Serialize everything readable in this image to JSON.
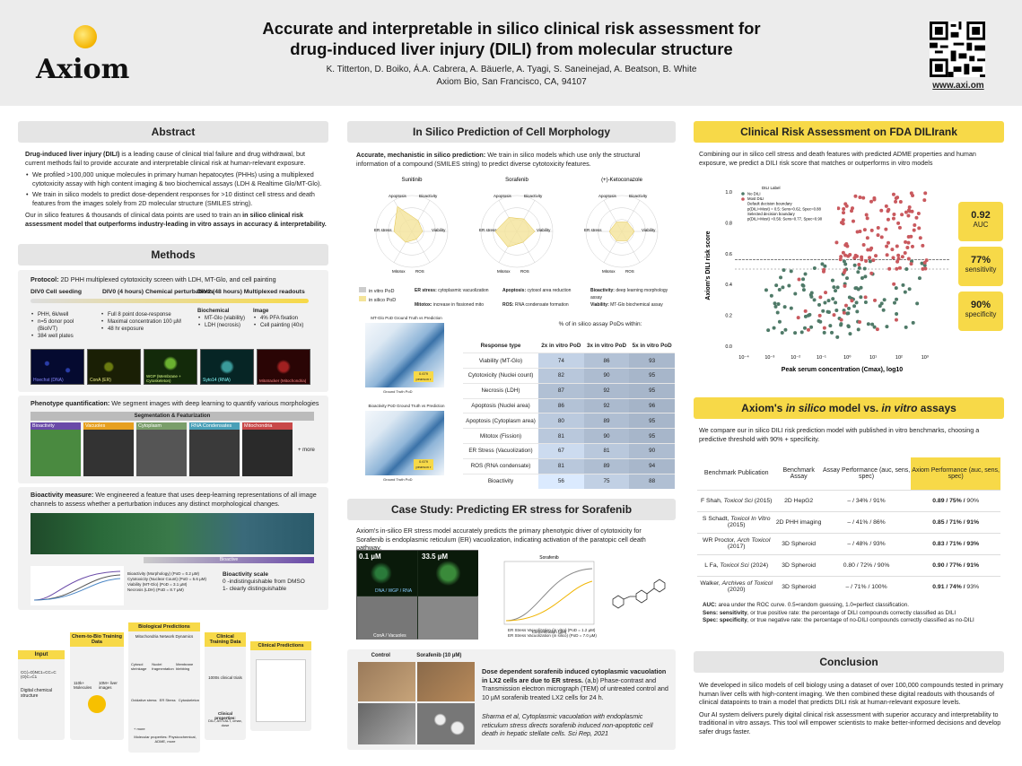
{
  "header": {
    "title_line1": "Accurate and interpretable in silico clinical risk assessment for",
    "title_line2": "drug-induced liver injury (DILI) from molecular structure",
    "authors": "K. Titterton, D. Boiko, Á.A. Cabrera, A. Bäuerle, A. Tyagi, S. Saneinejad, A. Beatson, B. White",
    "affiliation": "Axiom Bio, San Francisco, CA, 94107",
    "logo": "Axiom",
    "url": "www.axi.om"
  },
  "abstract": {
    "heading": "Abstract",
    "p1_bold": "Drug-induced liver injury (DILI)",
    "p1": " is a leading cause of clinical trial failure and drug withdrawal, but current methods fail to provide accurate and interpretable clinical risk at human-relevant exposure.",
    "b1": "We profiled >100,000 unique molecules in primary human hepatocytes (PHHs) using a multiplexed cytotoxicity assay with high content imaging & two biochemical assays (LDH & Realtime Glo/MT-Glo).",
    "b2": "We train in silico models to predict dose-dependent responses for >10 distinct cell stress and death features from the images solely from 2D molecular structure (SMILES string).",
    "p2": "Our in silico features & thousands of clinical data points are used to train an ",
    "p2_bold": "in silico clinical risk assessment model that outperforms industry-leading in vitro assays in accuracy & interpretability."
  },
  "methods": {
    "heading": "Methods",
    "protocol_bold": "Protocol:",
    "protocol": " 2D PHH multiplexed cytotoxicity screen with LDH, MT-Glo, and cell painting",
    "div0": "DIV0 Cell seeding",
    "div0_4": "DIV0 (4 hours) Chemical perturbations",
    "div2": "DIV2 (48 hours) Multiplexed readouts",
    "col1": [
      "PHH, 6k/well",
      "n=5 donor pool (BioIVT)",
      "384 well plates"
    ],
    "col2": [
      "Full 8 point dose-response",
      "Maximal concentration 100 µM",
      "48 hr exposure"
    ],
    "biochem_h": "Biochemical",
    "biochem": [
      "MT-Glo (viability)",
      "LDH (necrosis)"
    ],
    "image_h": "Image",
    "image": [
      "4% PFA fixation",
      "Cell painting (40x)"
    ],
    "stains": [
      "Hoechst (DNA)",
      "ConA (ER)",
      "WGP (Membrane + Cytoskeleton)",
      "Syto14 (RNA)",
      "Mitotracker (Mitochondria)"
    ],
    "pheno_bold": "Phenotype quantification:",
    "pheno": " We segment images with deep learning to quantify various morphologies",
    "seg_banner": "Segmentation & Featurization",
    "seg_tiles": [
      "Bioactivity",
      "Vacuoles",
      "Cytoplasm",
      "RNA Condensates",
      "Mitochondria"
    ],
    "seg_more": "+ more",
    "bio_bold": "Bioactivity measure:",
    "bio": " We engineered a feature that uses deep-learning representations of all image channels to assess whether a perturbation induces any distinct morphological changes.",
    "bio_legend": [
      "Bioactivity (Morphology) (PoD = 0.2 µM)",
      "Cytotoxicity (Nuclear Count) (PoD = 5.6 µM)",
      "Viability (MT-Glo) (PoD = 3.1 µM)",
      "Necrosis (LDH) (PoD = 8.7 µM)"
    ],
    "bio_scale_h": "Bioactivity scale",
    "bio_scale": [
      "0 -indistinguishable from DMSO",
      "1- clearly distinguishable"
    ],
    "bio_bar": "Bioactive",
    "flow": {
      "input": "Input",
      "input_smiles": "CC(=O)NC1=CC=C(O)C=C1",
      "input_desc": "Digital chemical structure",
      "c2b": "Chem-to-Bio Training Data",
      "c2b_a": "110k+ Molecules",
      "c2b_b": "10M+ liver images",
      "bio_pred": "Biological Predictions",
      "mito": "Mitochondria Network Dynamics",
      "mito_items": [
        "Cytosol shrinkage",
        "Nuclei fragmentation",
        "Membrane blebbing"
      ],
      "er_items": [
        "Oxidative stress",
        "ER Stress",
        "Cytoskeleton"
      ],
      "more": "+ more",
      "mol_props": "Molecular properties: Physicochemical, ADME, more",
      "clin_train": "Clinical Training Data",
      "clin_trials": "1000s clinical trials",
      "clin_props": "Clinical properties:",
      "clin_props_v": "DILI, AST/ALT, cmax, dose",
      "clin_pred": "Clinical Predictions"
    }
  },
  "morph": {
    "heading": "In Silico Prediction of Cell Morphology",
    "intro_bold": "Accurate, mechanistic in silico prediction:",
    "intro": " We train in silico models which use only the structural information of a compound (SMILES string) to predict diverse cytotoxicity features.",
    "radars": [
      "Sunitinib",
      "Sorafenib",
      "(+)-Ketoconazole"
    ],
    "axes": [
      "Bioactivity",
      "Viability",
      "ROS",
      "Mitotox",
      "ER stress",
      "Apoptosis"
    ],
    "legend": [
      "in vitro PoD",
      "in silico PoD"
    ],
    "defs": [
      {
        "k": "ER stress:",
        "v": " cytoplasmic vacuolization"
      },
      {
        "k": "Apoptosis:",
        "v": " cytosol area reduction"
      },
      {
        "k": "Bioactivity:",
        "v": " deep learning morphology assay"
      },
      {
        "k": "Mitotox:",
        "v": " increase in fissioned mito"
      },
      {
        "k": "ROS:",
        "v": " RNA condensate formation"
      },
      {
        "k": "Viability:",
        "v": " MT-Glo biochemical assay"
      }
    ],
    "plot1_title": "MT-Glo PoD Ground Truth vs Prediction",
    "plot2_title": "Bioactivity PoD Ground Truth vs Prediction",
    "r_box": "0.679",
    "r_label": "pearson r",
    "xlab": "Ground Truth PoD",
    "ylab": "Predicted PoD",
    "table_caption": "% of in silico assay PoDs within:",
    "th": [
      "Response type",
      "2x in vitro PoD",
      "3x in vitro PoD",
      "5x in vitro PoD"
    ],
    "rows": [
      [
        "Viability (MT-Glo)",
        "74",
        "86",
        "93"
      ],
      [
        "Cytotoxicity (Nuclei count)",
        "82",
        "90",
        "95"
      ],
      [
        "Necrosis (LDH)",
        "87",
        "92",
        "95"
      ],
      [
        "Apoptosis (Nuclei area)",
        "86",
        "92",
        "96"
      ],
      [
        "Apoptosis (Cytoplasm area)",
        "80",
        "89",
        "95"
      ],
      [
        "Mitotox (Fission)",
        "81",
        "90",
        "95"
      ],
      [
        "ER Stress (Vacuolization)",
        "67",
        "81",
        "90"
      ],
      [
        "ROS (RNA condensate)",
        "81",
        "89",
        "94"
      ],
      [
        "Bioactivity",
        "56",
        "75",
        "88"
      ]
    ]
  },
  "case": {
    "heading": "Case Study: Predicting ER stress for Sorafenib",
    "text": "Axiom's in-silico ER stress model accurately predicts the primary phenotypic driver of cytotoxicity for Sorafenib is endoplasmic reticulum (ER) vacuolization, indicating activation of the paratopic cell death pathway.",
    "conc1": "0.1 µM",
    "conc2": "33.5 µM",
    "chan1": "DNA / WGP / RNA",
    "chan2": "ConA / Vacuoles",
    "plot_title": "Sorafenib",
    "xlab": "Concentration (µM)",
    "ylab": "Normalized Response",
    "legend": [
      "ER Stress Vacuolization (in vitro) (PoD = 1.2 µM)",
      "ER Stress Vacuolization (in silico) (PoD = 7.0 µM)"
    ],
    "control": "Control",
    "soraf": "Sorafenib (10 µM)",
    "tem_bold": "Dose dependent sorafenib induced cytoplasmic vacuolation in LX2 cells are due to ER stress.",
    "tem": " (a,b) Phase-contrast and Transmission electron micrograph (TEM) of untreated control and 10 µM sorafenib treated LX2 cells for 24 h.",
    "cite": "Sharma et al, Cytoplasmic vacuolation with endoplasmic reticulum stress directs sorafenib induced non-apoptotic cell death in hepatic stellate cells. Sci Rep, 2021"
  },
  "risk": {
    "heading": "Clinical Risk Assessment on FDA DILIrank",
    "text": "Combining our in silico cell stress and death features with predicted ADME properties and human exposure, we predict a DILI risk score that matches or outperforms in vitro models",
    "legend_title": "DILI Label",
    "legend": [
      "No DILI",
      "Most DILI",
      "Default decision boundary",
      "p(DILI=Most) = 0.5: Sens=0.62, Spec=0.88",
      "Selected decision boundary",
      "p(DILI=Most) =0.56: Sens=0.77, Spec=0.90"
    ],
    "xlabel": "Peak serum concentration (Cmax), log10",
    "ylabel": "Axiom's DILI risk score",
    "xticks": [
      "10⁻⁴",
      "10⁻³",
      "10⁻²",
      "10⁻¹",
      "10⁰",
      "10¹",
      "10²",
      "10³"
    ],
    "yticks": [
      "0.0",
      "0.2",
      "0.4",
      "0.6",
      "0.8",
      "1.0"
    ],
    "stats": [
      {
        "v": "0.92",
        "l": "AUC"
      },
      {
        "v": "77%",
        "l": "sensitivity"
      },
      {
        "v": "90%",
        "l": "specificity"
      }
    ]
  },
  "compare": {
    "heading_pre": "Axiom's ",
    "heading_em": "in silico",
    "heading_mid": " model vs. ",
    "heading_em2": "in vitro",
    "heading_post": " assays",
    "text": "We compare our in silico DILI risk prediction model with published in vitro benchmarks, choosing a predictive threshold with 90% + specificity.",
    "th": [
      "Benchmark Publication",
      "Benchmark Assay",
      "Assay Performance (auc, sens, spec)",
      "Axiom Performance (auc, sens, spec)"
    ],
    "rows": [
      {
        "pub": "F Shah, ",
        "jr": "Toxicol Sci",
        "yr": " (2015)",
        "assay": "2D HepG2",
        "perf": "– / 34% / 91%",
        "ax": "0.89 / 75% /",
        "ax2": " 90%"
      },
      {
        "pub": "S Schadt, ",
        "jr": "Toxicol In Vitro",
        "yr": " (2015)",
        "assay": "2D PHH imaging",
        "perf": "– / 41% / 86%",
        "ax": "0.85 / 71% / 91%",
        "ax2": ""
      },
      {
        "pub": "WR Proctor, ",
        "jr": "Arch Toxicol",
        "yr": " (2017)",
        "assay": "3D Spheroid",
        "perf": "– / 48% / 93%",
        "ax": "0.83 / 71% / 93%",
        "ax2": ""
      },
      {
        "pub": "L Fa, ",
        "jr": "Toxicol Sci",
        "yr": " (2024)",
        "assay": "3D Spheroid",
        "perf": "0.80 / 72% / 90%",
        "ax": "0.90 / 77% / 91%",
        "ax2": ""
      },
      {
        "pub": "Walker, ",
        "jr": "Archives of Toxicol",
        "yr": " (2020)",
        "assay": "3D Spheroid",
        "perf": "– / 71% / 100%",
        "ax": "0.91 / 74% /",
        "ax2": " 93%"
      }
    ],
    "notes": [
      {
        "k": "AUC:",
        "v": " area under the ROC curve. 0.5=random guessing, 1.0=perfect classification."
      },
      {
        "k": "Sens: sensitivity",
        "v": ", or true positive rate: the percentage of DILI compounds correctly classified as DILI"
      },
      {
        "k": "Spec: specificity",
        "v": ", or true negative rate: the percentage of no-DILI compounds correctly classified as no-DILI"
      }
    ]
  },
  "conclusion": {
    "heading": "Conclusion",
    "p1": "We developed in silico models of cell biology using a dataset of over 100,000 compounds tested in primary human liver cells with high-content imaging. We then combined these digital readouts with thousands of clinical datapoints to train a model that predicts DILI risk at human-relevant exposure levels.",
    "p2": "Our AI system delivers purely digital clinical risk assessment with superior accuracy and interpretability to traditional in vitro assays. This tool will empower scientists to make better-informed decisions and develop safer drugs faster."
  },
  "colors": {
    "accent": "#f7d948",
    "nodili": "#4f7a68",
    "mostdili": "#c9595e",
    "blue": "#4a86c5"
  }
}
